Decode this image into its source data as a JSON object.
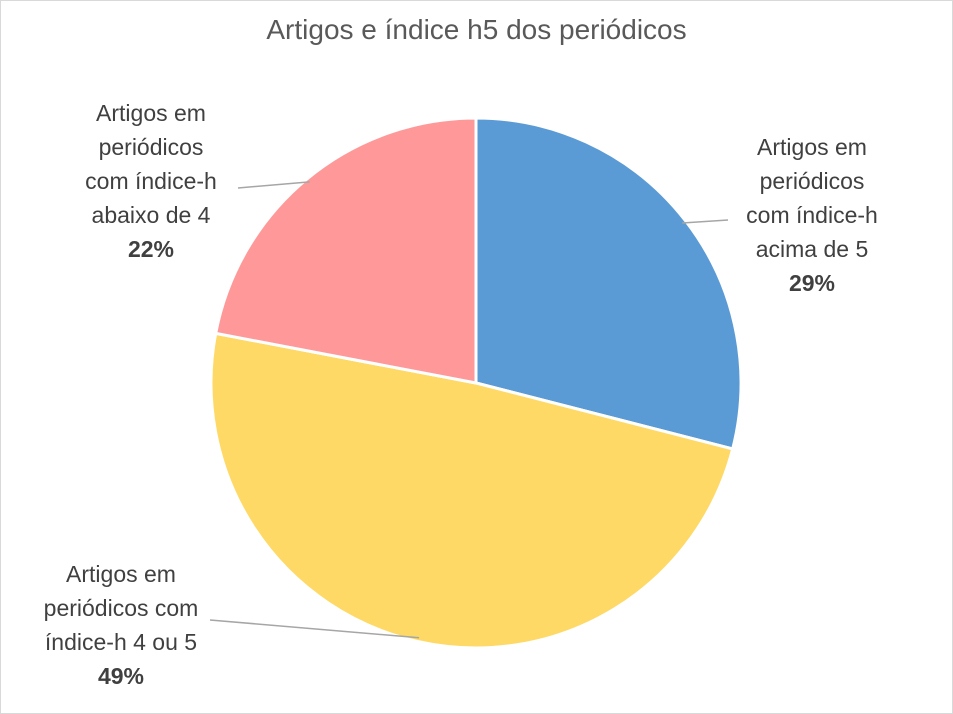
{
  "chart_data": {
    "type": "pie",
    "title": "Artigos e índice h5 dos periódicos",
    "slices": [
      {
        "label": "Artigos em\nperiódicos\ncom índice-h\nacima de 5",
        "value": 29,
        "value_label": "29%",
        "color": "#5b9bd5"
      },
      {
        "label": "Artigos em\nperiódicos com\níndice-h 4 ou 5",
        "value": 49,
        "value_label": "49%",
        "color": "#ffd966"
      },
      {
        "label": "Artigos em\nperiódicos\ncom índice-h\nabaixo de 4",
        "value": 22,
        "value_label": "22%",
        "color": "#ff9999"
      }
    ]
  }
}
